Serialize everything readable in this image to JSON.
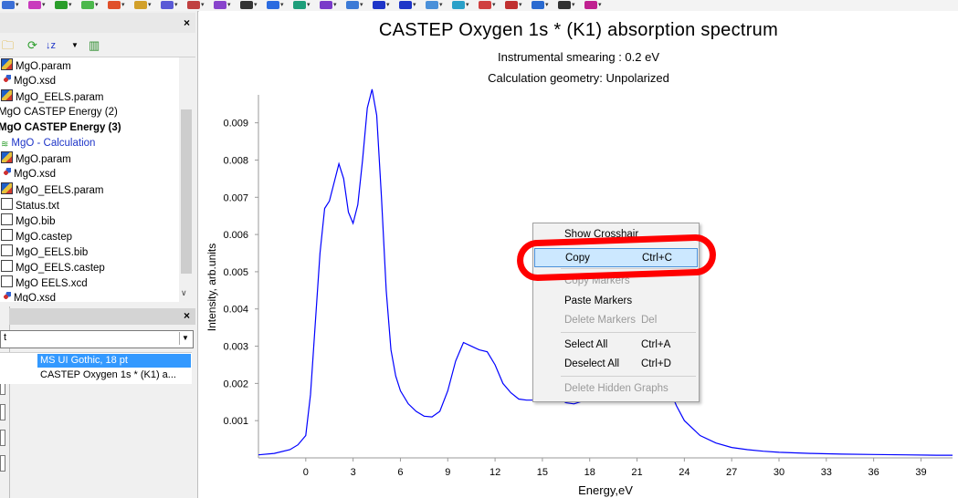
{
  "toolbar": {
    "icons": [
      "atom-icon",
      "molecule-icon",
      "bond-icon",
      "wave-icon",
      "crystal-icon",
      "lattice-icon",
      "grid-icon",
      "build-icon",
      "symmetry-icon",
      "g-icon",
      "target-icon",
      "chart-icon",
      "surface-icon",
      "cell-icon",
      "shield-icon",
      "diamond-icon",
      "vibration-icon",
      "tools-icon",
      "gear-icon",
      "graph-icon",
      "link-icon",
      "flask-icon",
      "settings-icon"
    ]
  },
  "project": {
    "items": [
      {
        "label": "MgO.param",
        "icon": "param-file-icon",
        "style": "normal",
        "indent": 0
      },
      {
        "label": "MgO.xsd",
        "icon": "structure-file-icon",
        "style": "normal",
        "indent": 0
      },
      {
        "label": "MgO_EELS.param",
        "icon": "param-file-icon",
        "style": "normal",
        "indent": 0
      },
      {
        "label": "MgO CASTEP Energy (2)",
        "icon": "",
        "style": "normal",
        "indent": -1
      },
      {
        "label": "MgO CASTEP Energy (3)",
        "icon": "",
        "style": "bold",
        "indent": -1
      },
      {
        "label": "MgO - Calculation",
        "icon": "calculation-icon",
        "style": "blue",
        "indent": 0
      },
      {
        "label": "MgO.param",
        "icon": "param-file-icon",
        "style": "normal",
        "indent": 0
      },
      {
        "label": "MgO.xsd",
        "icon": "structure-file-icon",
        "style": "normal",
        "indent": 0
      },
      {
        "label": "MgO_EELS.param",
        "icon": "param-file-icon",
        "style": "normal",
        "indent": 0
      },
      {
        "label": "Status.txt",
        "icon": "text-file-icon",
        "style": "normal",
        "indent": 0
      },
      {
        "label": "MgO.bib",
        "icon": "text-file-icon",
        "style": "normal",
        "indent": 0
      },
      {
        "label": "MgO.castep",
        "icon": "text-file-icon",
        "style": "normal",
        "indent": 0
      },
      {
        "label": "MgO_EELS.bib",
        "icon": "text-file-icon",
        "style": "normal",
        "indent": 0
      },
      {
        "label": "MgO_EELS.castep",
        "icon": "text-file-icon",
        "style": "normal",
        "indent": 0
      },
      {
        "label": "MgO EELS.xcd",
        "icon": "text-file-icon",
        "style": "normal",
        "indent": 0
      },
      {
        "label": "MgO.xsd",
        "icon": "structure-file-icon",
        "style": "normal",
        "indent": 0
      }
    ]
  },
  "properties": {
    "filter_value": "t",
    "font_value": "MS UI Gothic, 18 pt",
    "text_value": "CASTEP Oxygen 1s * (K1) a..."
  },
  "chart_data": {
    "type": "line",
    "title": "CASTEP Oxygen 1s * (K1) absorption spectrum",
    "subtitles": [
      "Instrumental smearing : 0.2 eV",
      "Calculation geometry: Unpolarized"
    ],
    "xlabel": "Energy,eV",
    "ylabel": "Intensity, arb.units",
    "xticks": [
      "0",
      "3",
      "6",
      "9",
      "12",
      "15",
      "18",
      "21",
      "24",
      "27",
      "30",
      "33",
      "36",
      "39"
    ],
    "yticks": [
      "0.001",
      "0.002",
      "0.003",
      "0.004",
      "0.005",
      "0.006",
      "0.007",
      "0.008",
      "0.009"
    ],
    "xlim": [
      -3,
      41
    ],
    "ylim": [
      0,
      0.0098
    ],
    "grid": false,
    "series": [
      {
        "color": "#0000ff",
        "x": [
          -3,
          -2,
          -1,
          -0.5,
          0,
          0.3,
          0.6,
          0.9,
          1.2,
          1.5,
          1.8,
          2.1,
          2.4,
          2.7,
          3.0,
          3.3,
          3.6,
          3.9,
          4.2,
          4.5,
          4.8,
          5.1,
          5.4,
          5.7,
          6.0,
          6.5,
          7.0,
          7.5,
          8.0,
          8.5,
          9.0,
          9.5,
          10.0,
          10.5,
          11.0,
          11.5,
          12.0,
          12.5,
          13.0,
          13.5,
          14.0,
          14.5,
          15.0,
          15.5,
          16.0,
          16.5,
          17.0,
          17.5,
          18.0,
          18.5,
          19.0,
          19.5,
          20.0,
          20.5,
          21.0,
          21.5,
          22.0,
          22.5,
          23.0,
          23.5,
          24.0,
          25.0,
          26.0,
          27.0,
          28.0,
          29.0,
          30.0,
          32.0,
          34.0,
          36.0,
          38.0,
          40.0,
          41.0
        ],
        "y": [
          8e-05,
          0.00012,
          0.00022,
          0.00035,
          0.0006,
          0.0017,
          0.0036,
          0.0055,
          0.0067,
          0.0069,
          0.0074,
          0.0079,
          0.0075,
          0.0066,
          0.0063,
          0.0068,
          0.008,
          0.0094,
          0.0099,
          0.0092,
          0.007,
          0.0045,
          0.0029,
          0.0022,
          0.0018,
          0.00145,
          0.00125,
          0.00112,
          0.0011,
          0.00125,
          0.0018,
          0.0026,
          0.0031,
          0.003,
          0.0029,
          0.00285,
          0.0025,
          0.002,
          0.00175,
          0.00158,
          0.00155,
          0.00155,
          0.0016,
          0.0017,
          0.0016,
          0.00148,
          0.00145,
          0.00152,
          0.00165,
          0.0018,
          0.0021,
          0.0026,
          0.0031,
          0.0035,
          0.0037,
          0.0036,
          0.0031,
          0.0025,
          0.0019,
          0.0014,
          0.001,
          0.0006,
          0.0004,
          0.00028,
          0.00022,
          0.00018,
          0.00015,
          0.00012,
          0.0001,
          9e-05,
          8e-05,
          7e-05,
          7e-05
        ]
      }
    ]
  },
  "context_menu": {
    "items": [
      {
        "label": "Show Crosshair",
        "shortcut": "",
        "disabled": false,
        "name": "menu-show-crosshair"
      },
      {
        "label": "Copy",
        "shortcut": "Ctrl+C",
        "disabled": false,
        "highlighted": true,
        "name": "menu-copy"
      },
      {
        "label": "Copy Markers",
        "shortcut": "",
        "disabled": true,
        "name": "menu-copy-markers"
      },
      {
        "label": "Paste Markers",
        "shortcut": "",
        "disabled": false,
        "name": "menu-paste-markers"
      },
      {
        "label": "Delete Markers",
        "shortcut": "Del",
        "disabled": true,
        "name": "menu-delete-markers"
      },
      {
        "label": "Select All",
        "shortcut": "Ctrl+A",
        "disabled": false,
        "name": "menu-select-all"
      },
      {
        "label": "Deselect All",
        "shortcut": "Ctrl+D",
        "disabled": false,
        "name": "menu-deselect-all"
      },
      {
        "label": "Delete Hidden Graphs",
        "shortcut": "",
        "disabled": true,
        "name": "menu-delete-hidden-graphs"
      }
    ],
    "highlight_color": "#cce8ff",
    "annotation_color": "#ff0000"
  }
}
